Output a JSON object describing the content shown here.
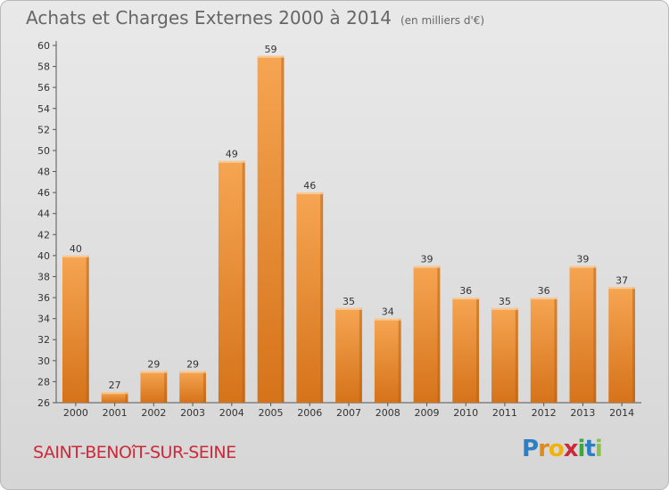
{
  "title": "Achats et Charges Externes 2000 à 2014",
  "subtitle": "(en milliers d'€)",
  "city": "SAINT-BENOîT-SUR-SEINE",
  "logo": {
    "text": "Proxiti"
  },
  "colors": {
    "bar_light": "#f6a552",
    "bar_dark": "#d5731a",
    "title": "#666666",
    "city": "#cc2a3a"
  },
  "chart_data": {
    "type": "bar",
    "categories": [
      "2000",
      "2001",
      "2002",
      "2003",
      "2004",
      "2005",
      "2006",
      "2007",
      "2008",
      "2009",
      "2010",
      "2011",
      "2012",
      "2013",
      "2014"
    ],
    "values": [
      40,
      27,
      29,
      29,
      49,
      59,
      46,
      35,
      34,
      39,
      36,
      35,
      36,
      39,
      37
    ],
    "title": "Achats et Charges Externes 2000 à 2014",
    "subtitle": "(en milliers d'€)",
    "ylim": [
      26,
      60
    ],
    "yticks": [
      26,
      28,
      30,
      32,
      34,
      36,
      38,
      40,
      42,
      44,
      46,
      48,
      50,
      52,
      54,
      56,
      58,
      60
    ],
    "grid": false
  }
}
